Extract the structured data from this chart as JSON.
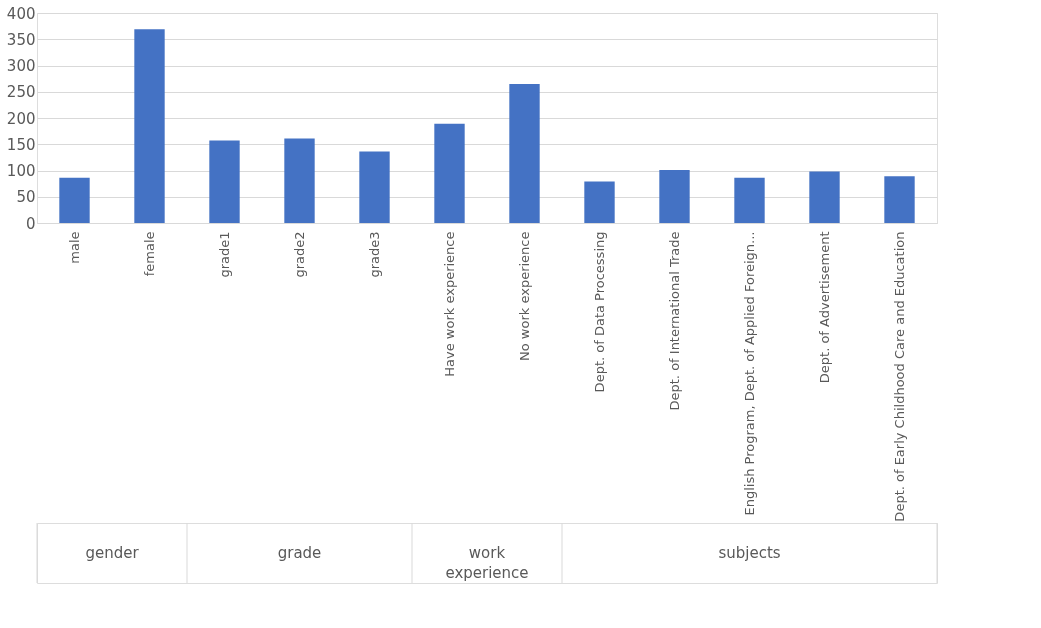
{
  "chart_data": {
    "type": "bar",
    "categories": [
      "male",
      "female",
      "grade1",
      "grade2",
      "grade3",
      "Have work experience",
      "No work experience",
      "Dept. of Data Processing",
      "Dept. of International Trade",
      "English Program, Dept. of Applied Foreign...",
      "Dept. of Advertisement",
      "Dept. of Early Childhood Care and Education"
    ],
    "values": [
      86,
      369,
      157,
      161,
      136,
      189,
      265,
      79,
      101,
      86,
      98,
      89
    ],
    "color": "#4472c4",
    "ylim": [
      0,
      400
    ],
    "yticks": [
      0,
      50,
      100,
      150,
      200,
      250,
      300,
      350,
      400
    ],
    "grid": "y",
    "annotations": [
      "gender",
      "grade",
      "work experience",
      "subjects"
    ]
  }
}
